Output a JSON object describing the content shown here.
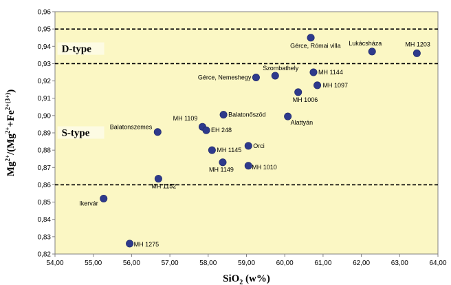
{
  "chart_data": {
    "type": "scatter",
    "title": "",
    "xlabel": {
      "base": "SiO",
      "sub": "2",
      "rest": " (w%)"
    },
    "ylabel": {
      "p1": "Mg",
      "s1": "2+",
      "p2": "/(Mg",
      "s2": "2+",
      "p3": "+Fe",
      "s3": "2+(3+)",
      "p4": ")"
    },
    "xlim": [
      54,
      64
    ],
    "ylim": [
      0.82,
      0.96
    ],
    "xticks": [
      "54,00",
      "55,00",
      "56,00",
      "57,00",
      "58,00",
      "59,00",
      "60,00",
      "61,00",
      "62,00",
      "63,00",
      "64,00"
    ],
    "yticks": [
      "0,82",
      "0,83",
      "0,84",
      "0,85",
      "0,86",
      "0,87",
      "0,88",
      "0,89",
      "0,90",
      "0,91",
      "0,92",
      "0,93",
      "0,94",
      "0,95",
      "0,96"
    ],
    "grid": false,
    "background_color": "#fbf7c4",
    "marker_color": "#2e3a8c",
    "reference_lines": [
      0.95,
      0.93,
      0.86
    ],
    "regions": [
      {
        "label": "D-type",
        "x": 54.1,
        "y": 0.9375
      },
      {
        "label": "S-type",
        "x": 54.1,
        "y": 0.889
      }
    ],
    "points": [
      {
        "label": "Gérce, Római villa",
        "x": 60.68,
        "y": 0.945
      },
      {
        "label": "Lukácsháza",
        "x": 62.28,
        "y": 0.937
      },
      {
        "label": "MH 1203",
        "x": 63.45,
        "y": 0.936
      },
      {
        "label": "MH 1144",
        "x": 60.75,
        "y": 0.925
      },
      {
        "label": "Szombathely",
        "x": 59.75,
        "y": 0.923
      },
      {
        "label": "Gérce, Nemeshegy",
        "x": 59.25,
        "y": 0.922
      },
      {
        "label": "MH 1097",
        "x": 60.85,
        "y": 0.9175
      },
      {
        "label": "MH 1006",
        "x": 60.35,
        "y": 0.9135
      },
      {
        "label": "Balatonőszöd",
        "x": 58.4,
        "y": 0.9005
      },
      {
        "label": "Alattyán",
        "x": 60.08,
        "y": 0.8995
      },
      {
        "label": "MH 1109",
        "x": 57.85,
        "y": 0.8935
      },
      {
        "label": "EH 248",
        "x": 57.95,
        "y": 0.8915
      },
      {
        "label": "Balatonszemes",
        "x": 56.68,
        "y": 0.8905
      },
      {
        "label": "Orci",
        "x": 59.05,
        "y": 0.8825
      },
      {
        "label": "MH 1145",
        "x": 58.1,
        "y": 0.88
      },
      {
        "label": "MH 1149",
        "x": 58.38,
        "y": 0.873
      },
      {
        "label": "MH 1010",
        "x": 59.05,
        "y": 0.871
      },
      {
        "label": "MH 1152",
        "x": 56.7,
        "y": 0.8635
      },
      {
        "label": "Ikervár",
        "x": 55.27,
        "y": 0.852
      },
      {
        "label": "MH 1275",
        "x": 55.95,
        "y": 0.826
      }
    ]
  }
}
